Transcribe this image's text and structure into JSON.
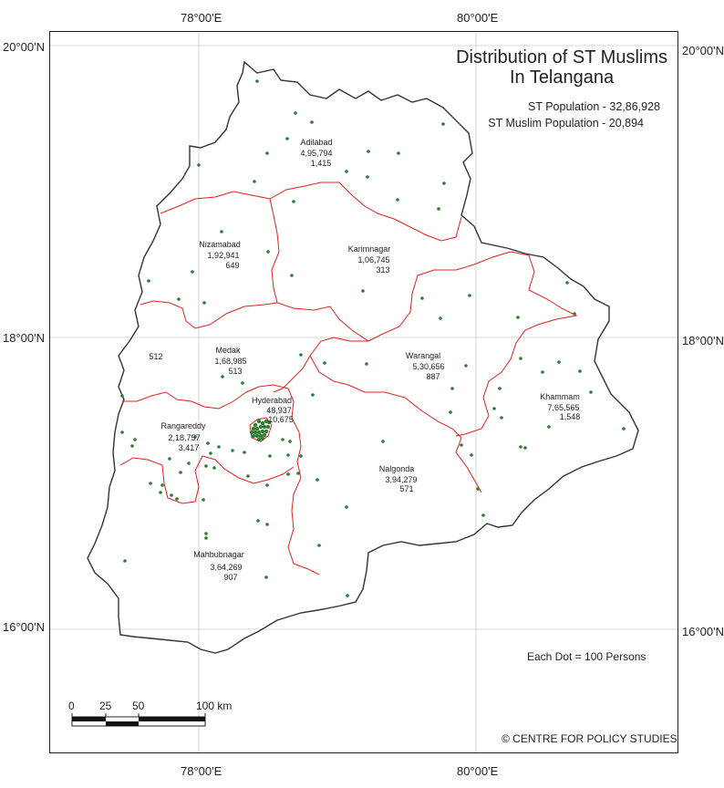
{
  "map": {
    "title_line1": "Distribution of ST Muslims",
    "title_line2": "In Telangana",
    "st_population": "ST Population - 32,86,928",
    "st_muslim_population": "ST Muslim Population - 20,894",
    "dot_legend": "Each Dot = 100 Persons",
    "credit": "© CENTRE FOR POLICY STUDIES",
    "colors": {
      "state_border": "#333333",
      "district_border": "#e02020",
      "dot": "#2e7d32",
      "grid": "#cccccc"
    },
    "graticule": {
      "top_left_lon": "78°00'E",
      "top_right_lon": "80°00'E",
      "bottom_left_lon": "78°00'E",
      "bottom_right_lon": "80°00'E",
      "left_lat_top": "20°00'N",
      "left_lat_mid": "18°00'N",
      "left_lat_bottom": "16°00'N",
      "right_lat_top": "20°00'N",
      "right_lat_mid": "18°00'N",
      "right_lat_bottom": "16°00'N"
    },
    "scale": {
      "t0": "0",
      "t1": "25",
      "t2": "50",
      "t3": "100 km"
    },
    "districts": [
      {
        "name": "Adilabad",
        "population": "4,95,794",
        "muslims": "1,415"
      },
      {
        "name": "Nizamabad",
        "population": "1,92,941",
        "muslims": "649"
      },
      {
        "name": "Karimnagar",
        "population": "1,06,745",
        "muslims": "313"
      },
      {
        "name": "Medak",
        "population": "1,68,985",
        "muslims": "513"
      },
      {
        "name": "",
        "population": "",
        "muslims": "512"
      },
      {
        "name": "Warangal",
        "population": "5,30,656",
        "muslims": "887"
      },
      {
        "name": "Hyderabad",
        "population": "48,937",
        "muslims": "10,675"
      },
      {
        "name": "Rangareddy",
        "population": "2,18,757",
        "muslims": "3,417"
      },
      {
        "name": "Khammam",
        "population": "7,65,565",
        "muslims": "1,548"
      },
      {
        "name": "Nalgonda",
        "population": "3,94,279",
        "muslims": "571"
      },
      {
        "name": "Mahbubnagar",
        "population": "3,64,269",
        "muslims": "907"
      }
    ]
  }
}
